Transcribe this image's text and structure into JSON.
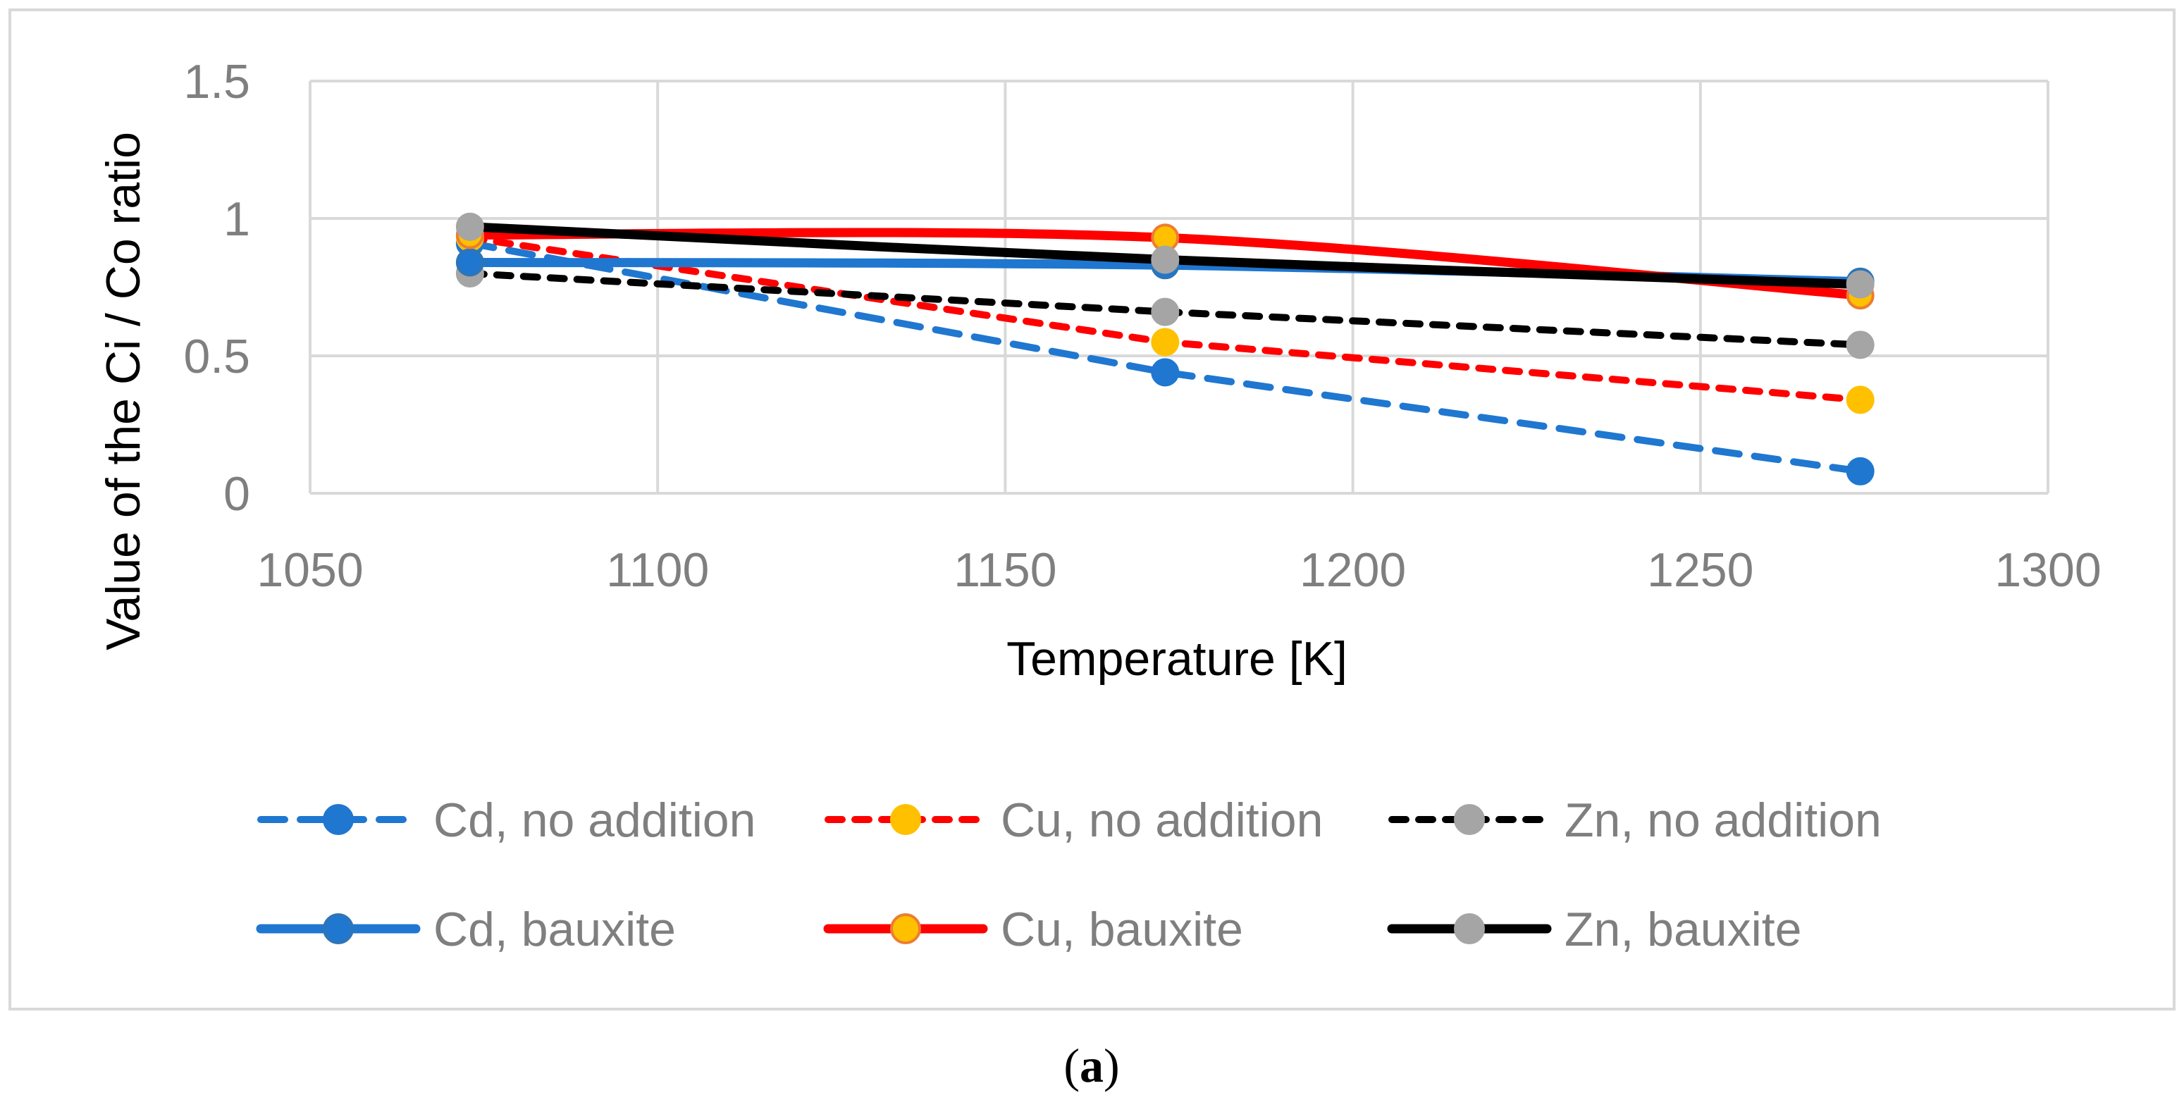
{
  "chart_data": {
    "type": "line",
    "title": "",
    "xlabel": "Temperature [K]",
    "ylabel": "Value of the Ci / Co ratio",
    "xlim": [
      1050,
      1300
    ],
    "ylim": [
      0,
      1.5
    ],
    "xticks": [
      1050,
      1100,
      1150,
      1200,
      1250,
      1300
    ],
    "yticks": [
      0,
      0.5,
      1,
      1.5
    ],
    "x_tick_labels": [
      "1050",
      "1100",
      "1150",
      "1200",
      "1250",
      "1300"
    ],
    "y_tick_labels": [
      "0",
      "0.5",
      "1",
      "1.5"
    ],
    "grid": true,
    "legend_position": "bottom",
    "x": [
      1073,
      1173,
      1273
    ],
    "series": [
      {
        "name": "Cd, no addition",
        "values": [
          0.91,
          0.44,
          0.08
        ],
        "line_color": "#1f77d0",
        "marker_color": "#1f77d0",
        "marker_edge": "#1f77d0",
        "dashed": true,
        "smooth": false
      },
      {
        "name": "Cu, no addition",
        "values": [
          0.93,
          0.55,
          0.34
        ],
        "line_color": "#ff0000",
        "marker_color": "#ffc000",
        "marker_edge": "#ffc000",
        "dashed": true,
        "smooth": false
      },
      {
        "name": "Zn, no addition",
        "values": [
          0.8,
          0.66,
          0.54
        ],
        "line_color": "#000000",
        "marker_color": "#a5a5a5",
        "marker_edge": "#a5a5a5",
        "dashed": true,
        "smooth": false
      },
      {
        "name": "Cd, bauxite",
        "values": [
          0.84,
          0.83,
          0.77
        ],
        "line_color": "#1f77d0",
        "marker_color": "#1f77d0",
        "marker_edge": "#2e75b6",
        "dashed": false,
        "smooth": true
      },
      {
        "name": "Cu, bauxite",
        "values": [
          0.94,
          0.93,
          0.72
        ],
        "line_color": "#ff0000",
        "marker_color": "#ffc000",
        "marker_edge": "#ed7d31",
        "dashed": false,
        "smooth": true
      },
      {
        "name": "Zn, bauxite",
        "values": [
          0.97,
          0.85,
          0.76
        ],
        "line_color": "#000000",
        "marker_color": "#a5a5a5",
        "marker_edge": "#a5a5a5",
        "dashed": false,
        "smooth": true
      }
    ],
    "caption_letter": "a",
    "caption_open": "(",
    "caption_close": ")"
  }
}
